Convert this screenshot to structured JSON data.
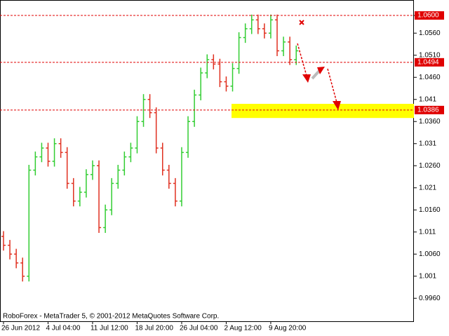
{
  "chart_data": {
    "type": "ohlc",
    "watermark": "RoboForex - MetaTrader 5, © 2001-2012 MetaQuotes Software Corp.",
    "categories": [
      "26 Jun 2012",
      null,
      null,
      null,
      null,
      null,
      null,
      "4 Jul 04:00",
      null,
      null,
      null,
      null,
      null,
      null,
      "11 Jul 12:00",
      null,
      null,
      null,
      null,
      null,
      null,
      "18 Jul 20:00",
      null,
      null,
      null,
      null,
      null,
      null,
      "26 Jul 04:00",
      null,
      null,
      null,
      null,
      null,
      null,
      "2 Aug 12:00",
      null,
      null,
      null,
      null,
      null,
      null,
      "9 Aug 20:00",
      null,
      null,
      null,
      null
    ],
    "open": [
      1.01,
      1.008,
      1.006,
      1.004,
      1.001,
      1.025,
      1.028,
      1.03,
      1.027,
      1.031,
      1.029,
      1.022,
      1.018,
      1.02,
      1.024,
      1.026,
      1.012,
      1.016,
      1.022,
      1.025,
      1.028,
      1.03,
      1.036,
      1.041,
      1.038,
      1.03,
      1.025,
      1.022,
      1.018,
      1.029,
      1.036,
      1.042,
      1.047,
      1.05,
      1.049,
      1.045,
      1.044,
      1.048,
      1.055,
      1.057,
      1.059,
      1.057,
      1.056,
      1.059,
      1.052,
      1.054,
      1.05
    ],
    "high": [
      1.0112,
      1.0092,
      1.0072,
      1.0052,
      1.0262,
      1.0292,
      1.0312,
      1.0312,
      1.0322,
      1.0322,
      1.0302,
      1.0232,
      1.0212,
      1.0252,
      1.0272,
      1.0272,
      1.0172,
      1.0232,
      1.0262,
      1.0292,
      1.0312,
      1.0372,
      1.0422,
      1.0422,
      1.0392,
      1.0312,
      1.0262,
      1.0232,
      1.0302,
      1.0372,
      1.0432,
      1.0482,
      1.0512,
      1.0512,
      1.0502,
      1.0462,
      1.0492,
      1.0562,
      1.0582,
      1.0602,
      1.0602,
      1.0582,
      1.0602,
      1.0602,
      1.0552,
      1.0552,
      1.0532
    ],
    "low": [
      1.0068,
      1.0048,
      1.0028,
      0.9998,
      0.9998,
      1.0238,
      1.0268,
      1.0258,
      1.0258,
      1.0278,
      1.0208,
      1.0168,
      1.0168,
      1.0188,
      1.0228,
      1.0108,
      1.0108,
      1.0148,
      1.0208,
      1.0238,
      1.0268,
      1.0288,
      1.0348,
      1.0368,
      1.0288,
      1.0238,
      1.0208,
      1.0168,
      1.0168,
      1.0278,
      1.0348,
      1.0408,
      1.0458,
      1.0478,
      1.0438,
      1.0428,
      1.0428,
      1.0468,
      1.0538,
      1.0558,
      1.0558,
      1.0548,
      1.0548,
      1.0508,
      1.0508,
      1.0488,
      1.0488
    ],
    "close": [
      1.008,
      1.006,
      1.004,
      1.001,
      1.025,
      1.028,
      1.03,
      1.027,
      1.031,
      1.029,
      1.022,
      1.018,
      1.02,
      1.024,
      1.026,
      1.012,
      1.016,
      1.022,
      1.025,
      1.028,
      1.03,
      1.036,
      1.041,
      1.038,
      1.03,
      1.025,
      1.022,
      1.018,
      1.029,
      1.036,
      1.042,
      1.047,
      1.05,
      1.049,
      1.045,
      1.044,
      1.048,
      1.055,
      1.057,
      1.059,
      1.057,
      1.056,
      1.059,
      1.052,
      1.054,
      1.05,
      1.052
    ],
    "up_color": "#32cd32",
    "down_color": "#e03020",
    "ylim": [
      0.9908,
      1.0635
    ],
    "yticks": [
      {
        "value": 1.06,
        "label": "1.0600"
      },
      {
        "value": 1.056,
        "label": "1.0560"
      },
      {
        "value": 1.051,
        "label": "1.0510"
      },
      {
        "value": 1.046,
        "label": "1.0460"
      },
      1.041,
      {
        "value": 1.036,
        "label": "1.0360"
      },
      1.031,
      {
        "value": 1.026,
        "label": "1.0260"
      },
      1.021,
      {
        "value": 1.016,
        "label": "1.0160"
      },
      1.011,
      {
        "value": 1.006,
        "label": "1.0060"
      },
      1.001,
      {
        "value": 0.996,
        "label": "0.9960"
      }
    ],
    "levels": [
      {
        "value": 1.06,
        "label": "1.0600"
      },
      1.0494,
      1.0386
    ],
    "level_color": "#e00000",
    "zone": {
      "from": 1.0368,
      "to": 1.04,
      "color": "#ffff00"
    }
  }
}
